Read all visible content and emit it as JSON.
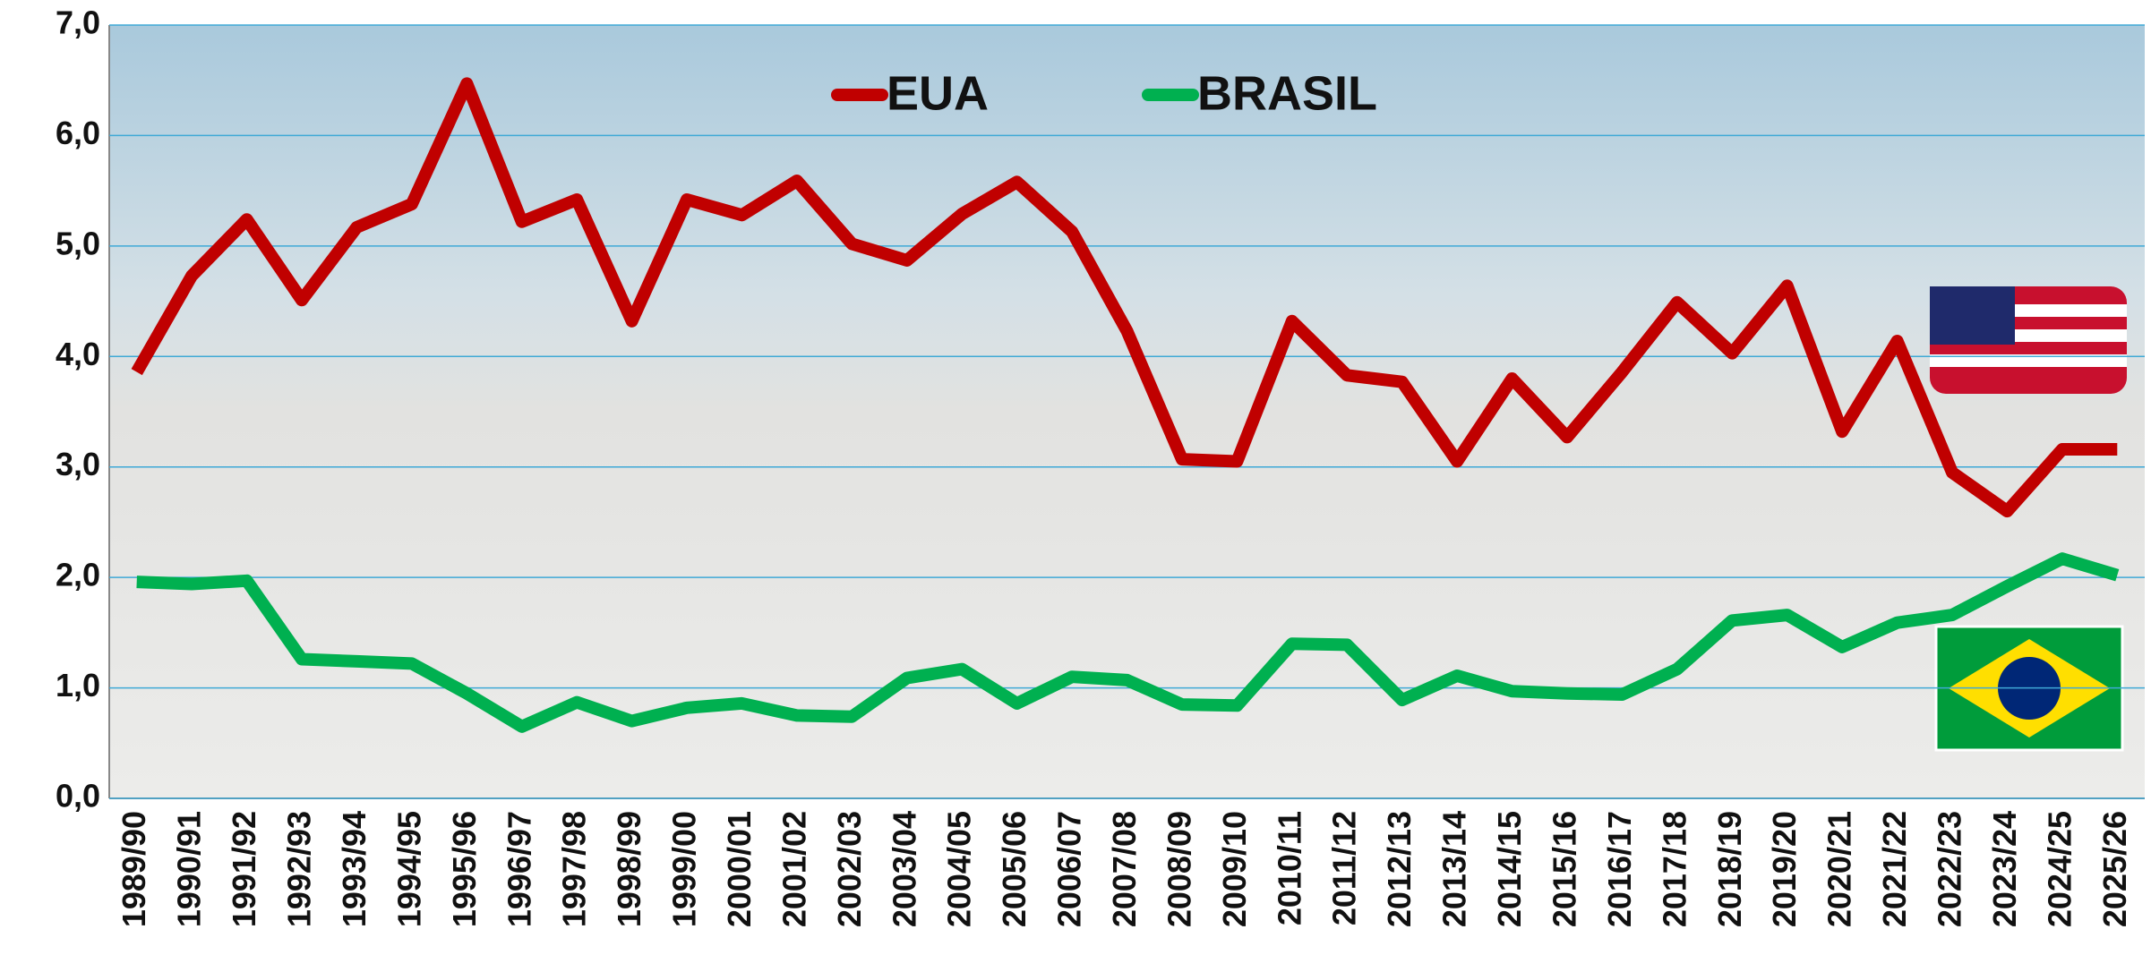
{
  "chart_data": {
    "type": "line",
    "categories": [
      "1989/90",
      "1990/91",
      "1991/92",
      "1992/93",
      "1993/94",
      "1994/95",
      "1995/96",
      "1996/97",
      "1997/98",
      "1998/99",
      "1999/00",
      "2000/01",
      "2001/02",
      "2002/03",
      "2003/04",
      "2004/05",
      "2005/06",
      "2006/07",
      "2007/08",
      "2008/09",
      "2009/10",
      "2010/11",
      "2011/12",
      "2012/13",
      "2013/14",
      "2014/15",
      "2015/16",
      "2016/17",
      "2017/18",
      "2018/19",
      "2019/20",
      "2020/21",
      "2021/22",
      "2022/23",
      "2023/24",
      "2024/25",
      "2025/26"
    ],
    "series": [
      {
        "name": "EUA",
        "color": "#c00000",
        "values": [
          3.86,
          4.73,
          5.24,
          4.51,
          5.17,
          5.38,
          6.47,
          5.22,
          5.42,
          4.32,
          5.42,
          5.28,
          5.59,
          5.02,
          4.87,
          5.29,
          5.58,
          5.13,
          4.23,
          3.07,
          3.05,
          4.32,
          3.83,
          3.77,
          3.05,
          3.8,
          3.27,
          3.86,
          4.49,
          4.03,
          4.64,
          3.32,
          4.14,
          2.95,
          2.6,
          3.16,
          3.16
        ]
      },
      {
        "name": "BRASIL",
        "color": "#00b050",
        "values": [
          1.96,
          1.94,
          1.97,
          1.26,
          1.24,
          1.22,
          0.95,
          0.65,
          0.87,
          0.7,
          0.82,
          0.86,
          0.75,
          0.74,
          1.09,
          1.17,
          0.86,
          1.1,
          1.07,
          0.85,
          0.84,
          1.4,
          1.39,
          0.89,
          1.11,
          0.97,
          0.95,
          0.94,
          1.17,
          1.61,
          1.66,
          1.37,
          1.59,
          1.66,
          1.92,
          2.17,
          2.02
        ]
      }
    ],
    "ylim": [
      0,
      7
    ],
    "yticks": [
      {
        "value": 0,
        "label": "0,0"
      },
      {
        "value": 1,
        "label": "1,0"
      },
      {
        "value": 2,
        "label": "2,0"
      },
      {
        "value": 3,
        "label": "3,0"
      },
      {
        "value": 4,
        "label": "4,0"
      },
      {
        "value": 5,
        "label": "5,0"
      },
      {
        "value": 6,
        "label": "6,0"
      },
      {
        "value": 7,
        "label": "7,0"
      }
    ],
    "grid": true,
    "legend": "top"
  }
}
